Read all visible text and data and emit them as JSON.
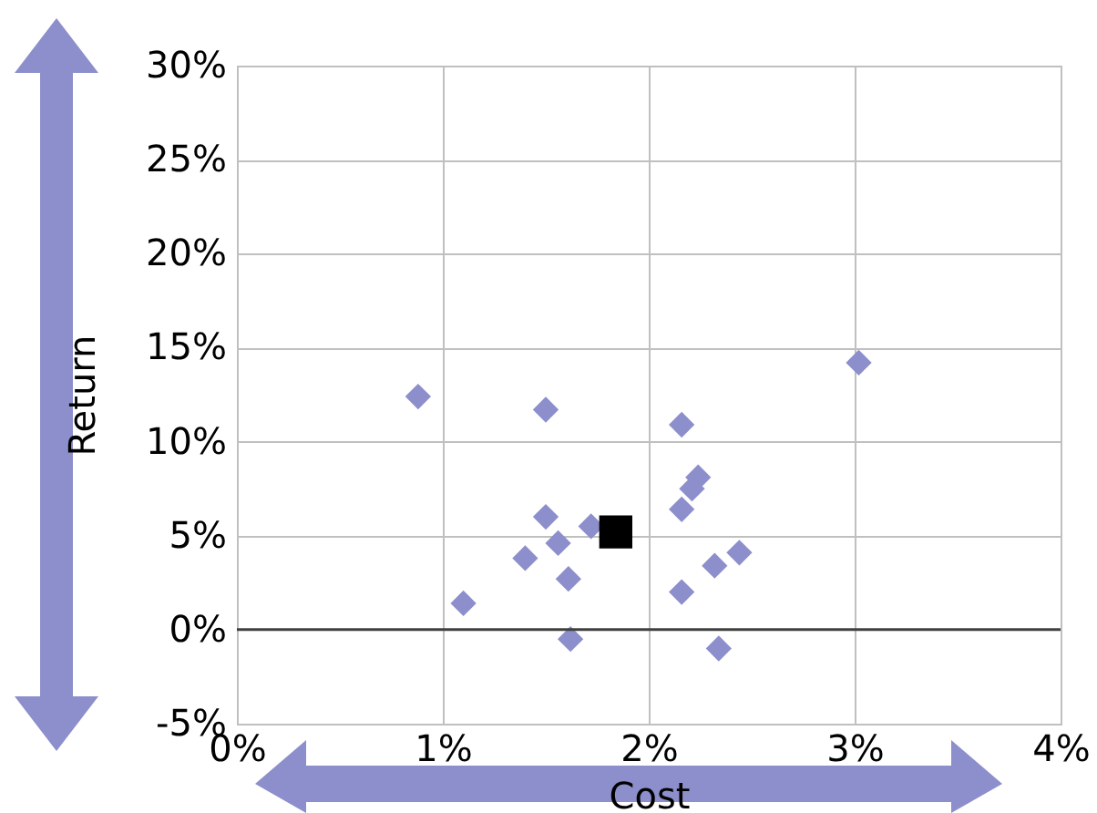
{
  "chart_data": {
    "type": "scatter",
    "xlabel": "Cost",
    "ylabel": "Return",
    "xlim": [
      0,
      4
    ],
    "xticks": [
      {
        "value": 0,
        "label": "0%"
      },
      {
        "value": 1,
        "label": "1%"
      },
      {
        "value": 2,
        "label": "2%"
      },
      {
        "value": 3,
        "label": "3%"
      },
      {
        "value": 4,
        "label": "4%"
      }
    ],
    "ylim": [
      -5,
      30
    ],
    "yticks": [
      {
        "value": -5,
        "label": "-5%"
      },
      {
        "value": 0,
        "label": "0%"
      },
      {
        "value": 5,
        "label": "5%"
      },
      {
        "value": 10,
        "label": "10%"
      },
      {
        "value": 15,
        "label": "15%"
      },
      {
        "value": 20,
        "label": "20%"
      },
      {
        "value": 25,
        "label": "25%"
      },
      {
        "value": 30,
        "label": "30%"
      }
    ],
    "grid": true,
    "series": [
      {
        "color": "#8c8fcb",
        "marker": "diamond",
        "x": [
          0.88,
          1.5,
          3.02,
          2.16,
          2.24,
          2.21,
          2.16,
          1.5,
          1.56,
          1.72,
          1.4,
          1.61,
          1.1,
          1.62,
          2.16,
          2.32,
          2.44,
          2.34
        ],
        "values": [
          12.4,
          11.7,
          14.2,
          10.9,
          8.1,
          7.5,
          6.4,
          6.0,
          4.6,
          5.5,
          3.8,
          2.7,
          1.4,
          -0.5,
          2.0,
          3.4,
          4.1,
          -1.0
        ]
      },
      {
        "color": "#000000",
        "marker": "square",
        "x": [
          1.84
        ],
        "values": [
          5.2
        ]
      }
    ]
  }
}
